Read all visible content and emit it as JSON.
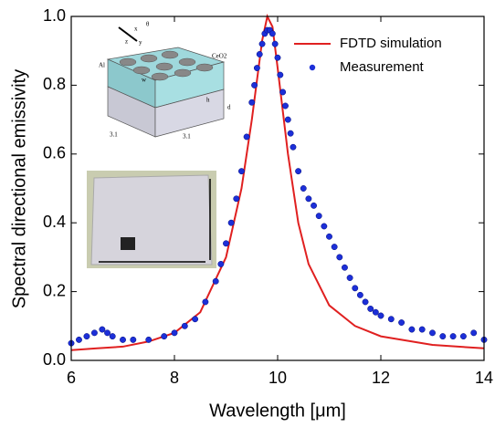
{
  "chart_data": {
    "type": "line_scatter",
    "xlabel": "Wavelength [μm]",
    "ylabel": "Spectral directional emissivity",
    "xlim": [
      6,
      14
    ],
    "ylim": [
      0,
      1
    ],
    "xticks": [
      6,
      8,
      10,
      12,
      14
    ],
    "yticks": [
      {
        "value": 0,
        "label": "0.0"
      },
      0.2,
      0.4,
      0.6,
      0.8,
      {
        "value": 1,
        "label": "1.0"
      }
    ],
    "legend": "upper right",
    "series": [
      {
        "name": "FDTD simulation",
        "kind": "line",
        "color": "#e02020",
        "x": [
          6,
          6.5,
          7,
          7.5,
          8,
          8.5,
          9,
          9.3,
          9.5,
          9.7,
          9.8,
          9.9,
          10,
          10.2,
          10.4,
          10.6,
          11,
          11.5,
          12,
          13,
          14
        ],
        "values": [
          0.03,
          0.035,
          0.04,
          0.055,
          0.08,
          0.14,
          0.3,
          0.5,
          0.7,
          0.93,
          1.0,
          0.97,
          0.85,
          0.6,
          0.4,
          0.28,
          0.16,
          0.1,
          0.07,
          0.045,
          0.035
        ]
      },
      {
        "name": "Measurement",
        "kind": "scatter",
        "color": "#1c2fd8",
        "x": [
          6,
          6.15,
          6.3,
          6.45,
          6.6,
          6.7,
          6.8,
          7,
          7.2,
          7.5,
          7.8,
          8,
          8.2,
          8.4,
          8.6,
          8.8,
          8.9,
          9,
          9.1,
          9.2,
          9.3,
          9.4,
          9.5,
          9.55,
          9.6,
          9.65,
          9.7,
          9.75,
          9.8,
          9.85,
          9.9,
          9.95,
          10,
          10.05,
          10.1,
          10.15,
          10.2,
          10.25,
          10.3,
          10.4,
          10.5,
          10.6,
          10.7,
          10.8,
          10.9,
          11,
          11.1,
          11.2,
          11.3,
          11.4,
          11.5,
          11.6,
          11.7,
          11.8,
          11.9,
          12,
          12.2,
          12.4,
          12.6,
          12.8,
          13,
          13.2,
          13.4,
          13.6,
          13.8,
          14
        ],
        "values": [
          0.05,
          0.06,
          0.07,
          0.08,
          0.09,
          0.08,
          0.07,
          0.06,
          0.06,
          0.06,
          0.07,
          0.08,
          0.1,
          0.12,
          0.17,
          0.23,
          0.28,
          0.34,
          0.4,
          0.47,
          0.55,
          0.65,
          0.75,
          0.8,
          0.85,
          0.89,
          0.92,
          0.95,
          0.96,
          0.96,
          0.95,
          0.92,
          0.88,
          0.83,
          0.78,
          0.74,
          0.7,
          0.66,
          0.62,
          0.55,
          0.5,
          0.47,
          0.45,
          0.42,
          0.39,
          0.36,
          0.33,
          0.3,
          0.27,
          0.24,
          0.21,
          0.19,
          0.17,
          0.15,
          0.14,
          0.13,
          0.12,
          0.11,
          0.09,
          0.09,
          0.08,
          0.07,
          0.07,
          0.07,
          0.08,
          0.06
        ]
      }
    ],
    "inset_labels": [
      "Al",
      "CeO2",
      "3.1",
      "3.1",
      "d",
      "h",
      "w",
      "x",
      "y",
      "z",
      "θ"
    ]
  }
}
